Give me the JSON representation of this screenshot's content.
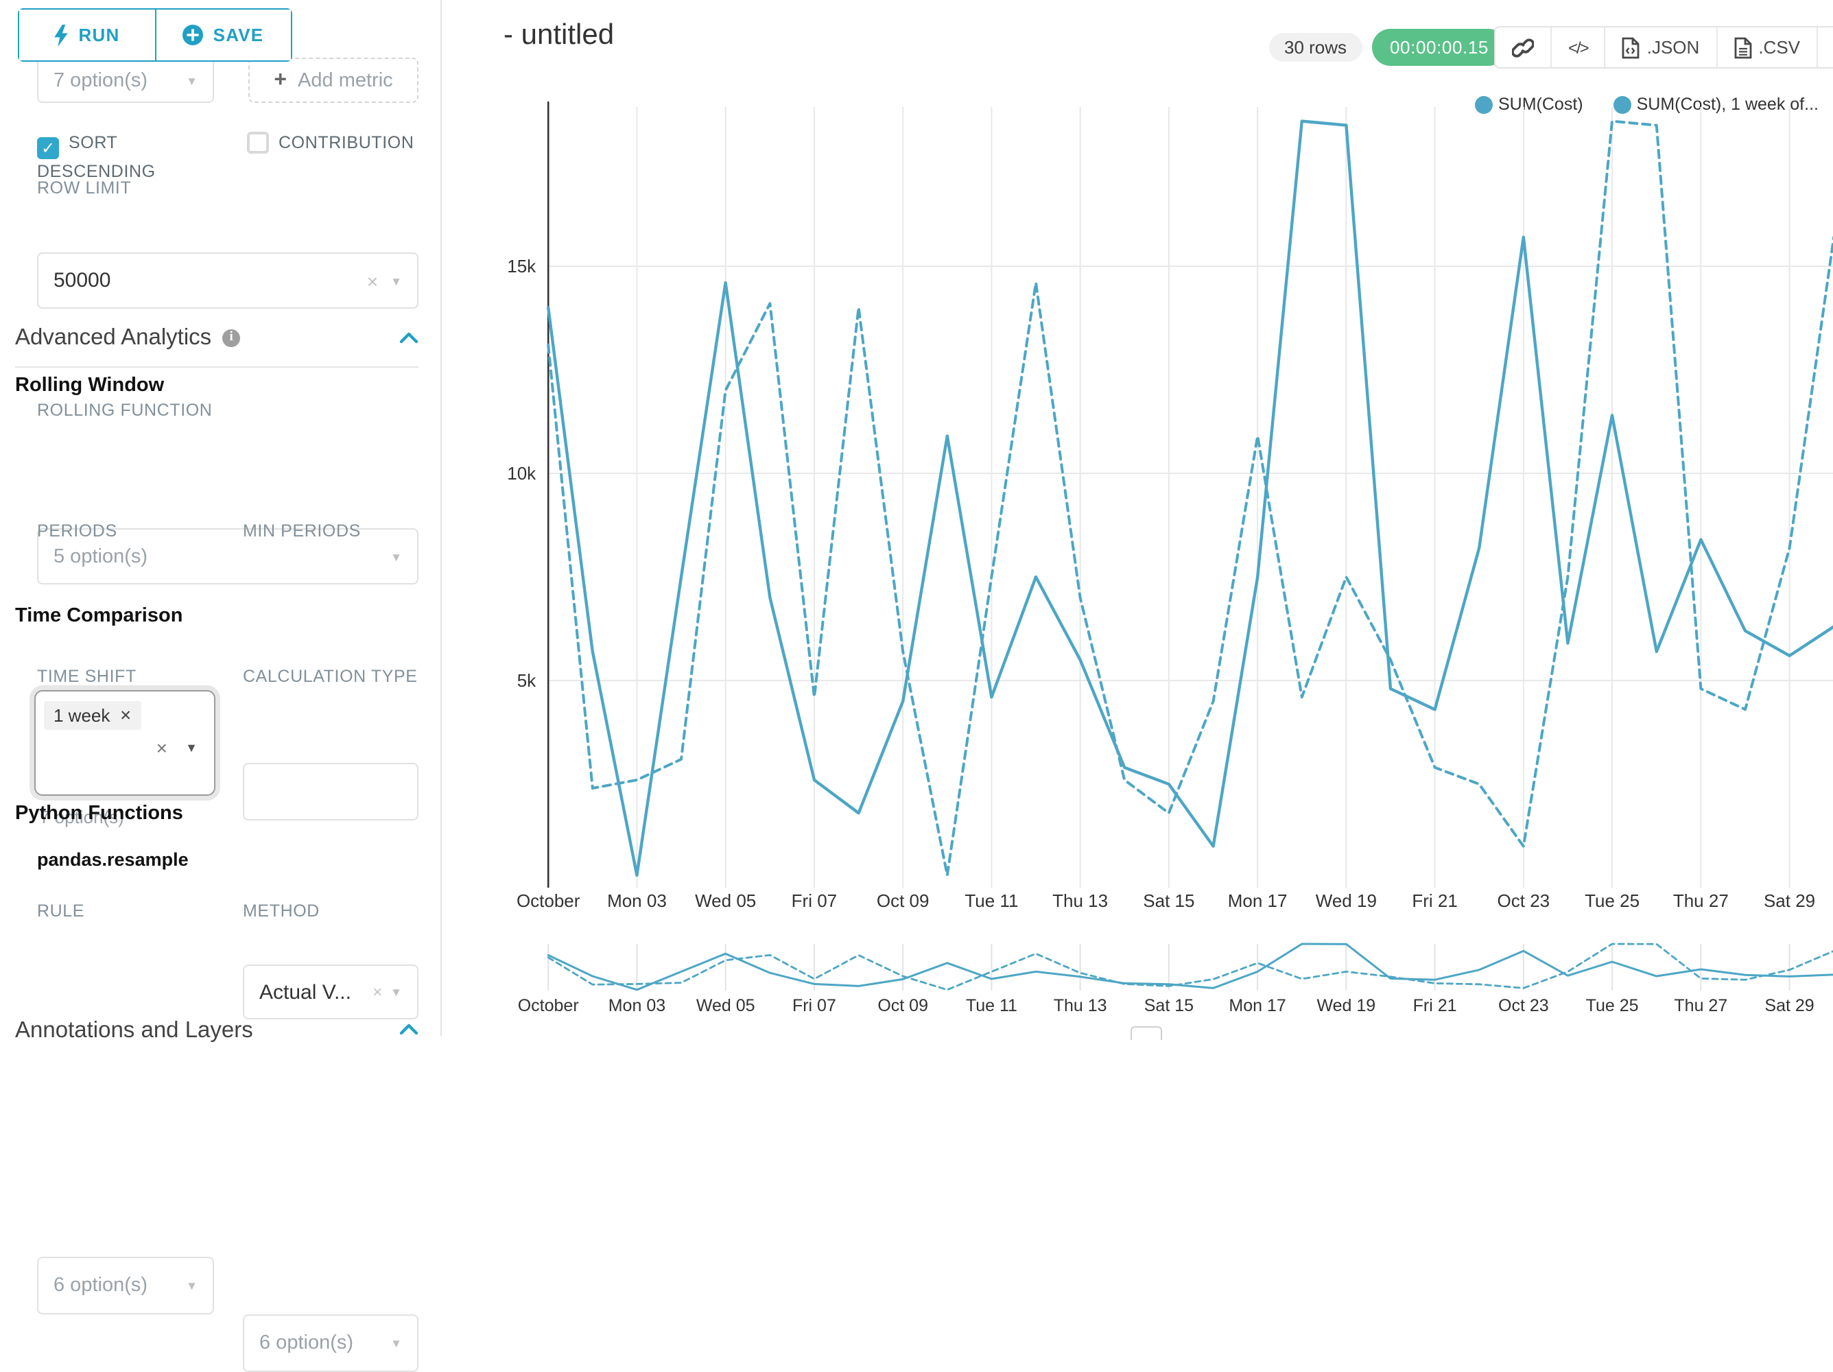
{
  "colors": {
    "primary": "#1fa0c4",
    "series_line": "#4da6c5",
    "success_green": "#5ac189",
    "checkbox_checked": "#2fa8cb",
    "grid": "#e8e8e8",
    "axis": "#333333"
  },
  "sidebar": {
    "run_label": "RUN",
    "save_label": "SAVE",
    "groupby_value": "7 option(s)",
    "add_metric_label": "Add metric",
    "sort_descending_label": "SORT DESCENDING",
    "contribution_label": "CONTRIBUTION",
    "row_limit_label": "ROW LIMIT",
    "row_limit_value": "50000",
    "advanced_analytics_title": "Advanced Analytics",
    "rolling_window_title": "Rolling Window",
    "rolling_function_label": "ROLLING FUNCTION",
    "rolling_function_value": "5 option(s)",
    "periods_label": "PERIODS",
    "min_periods_label": "MIN PERIODS",
    "time_comparison_title": "Time Comparison",
    "time_shift_label": "TIME SHIFT",
    "time_shift_tag": "1 week",
    "time_shift_helper": "7 option(s)",
    "calculation_type_label": "CALCULATION TYPE",
    "calculation_type_value": "Actual V...",
    "python_functions_title": "Python Functions",
    "resample_label": "pandas.resample",
    "rule_label": "RULE",
    "rule_value": "6 option(s)",
    "method_label": "METHOD",
    "method_value": "6 option(s)",
    "annotations_title": "Annotations and Layers"
  },
  "header": {
    "title": "- untitled",
    "rows_badge": "30 rows",
    "timer": "00:00:00.15",
    "json_label": ".JSON",
    "csv_label": ".CSV"
  },
  "legend": [
    {
      "label": "SUM(Cost)"
    },
    {
      "label": "SUM(Cost), 1 week of..."
    }
  ],
  "chart_data": {
    "type": "line",
    "title": "- untitled",
    "xlabel": "",
    "ylabel": "",
    "value_unit": "thousands",
    "ylim": [
      0,
      18.84
    ],
    "num_points": 30,
    "grid": true,
    "legend_position": "top-right",
    "x_tick_labels": [
      "October",
      "Mon 03",
      "Wed 05",
      "Fri 07",
      "Oct 09",
      "Tue 11",
      "Thu 13",
      "Sat 15",
      "Mon 17",
      "Wed 19",
      "Fri 21",
      "Oct 23",
      "Tue 25",
      "Thu 27",
      "Sat 29"
    ],
    "y_tick_labels": [
      "5k",
      "10k",
      "15k"
    ],
    "series": [
      {
        "name": "SUM(Cost)",
        "line_style": "solid",
        "values": [
          14.0,
          5.7,
          0.3,
          7.5,
          14.6,
          7.0,
          2.6,
          1.8,
          4.5,
          10.9,
          4.6,
          7.5,
          5.5,
          2.9,
          2.5,
          1.0,
          7.5,
          18.5,
          18.4,
          4.8,
          4.3,
          8.2,
          15.7,
          5.9,
          11.4,
          5.7,
          8.4,
          6.2,
          5.6,
          6.3
        ]
      },
      {
        "name": "SUM(Cost), 1 week of...",
        "line_style": "dashed",
        "values": [
          13.1,
          2.4,
          2.6,
          3.1,
          12.0,
          14.1,
          4.6,
          14.0,
          5.7,
          0.3,
          7.5,
          14.6,
          7.0,
          2.6,
          1.8,
          4.5,
          10.9,
          4.6,
          7.5,
          5.5,
          2.9,
          2.5,
          1.0,
          7.5,
          18.5,
          18.4,
          4.8,
          4.3,
          8.2,
          15.7
        ]
      }
    ],
    "has_mini_preview_chart": true
  }
}
